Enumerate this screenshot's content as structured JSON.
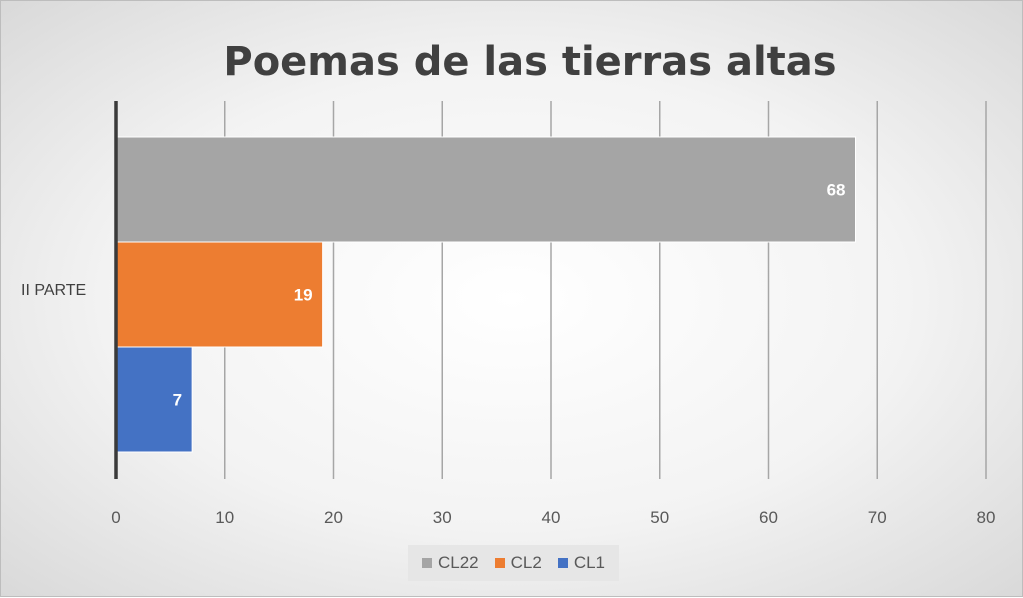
{
  "chart_data": {
    "type": "bar",
    "orientation": "horizontal",
    "title": "Poemas de las tierras altas",
    "categories": [
      "II PARTE"
    ],
    "series": [
      {
        "name": "CL22",
        "values": [
          68
        ],
        "color": "#a5a5a5"
      },
      {
        "name": "CL2",
        "values": [
          19
        ],
        "color": "#ed7d31"
      },
      {
        "name": "CL1",
        "values": [
          7
        ],
        "color": "#4472c4"
      }
    ],
    "xlim": [
      0,
      80
    ],
    "x_ticks": [
      0,
      10,
      20,
      30,
      40,
      50,
      60,
      70,
      80
    ],
    "grid": true,
    "legend_placement": "bottom",
    "data_labels": true
  }
}
